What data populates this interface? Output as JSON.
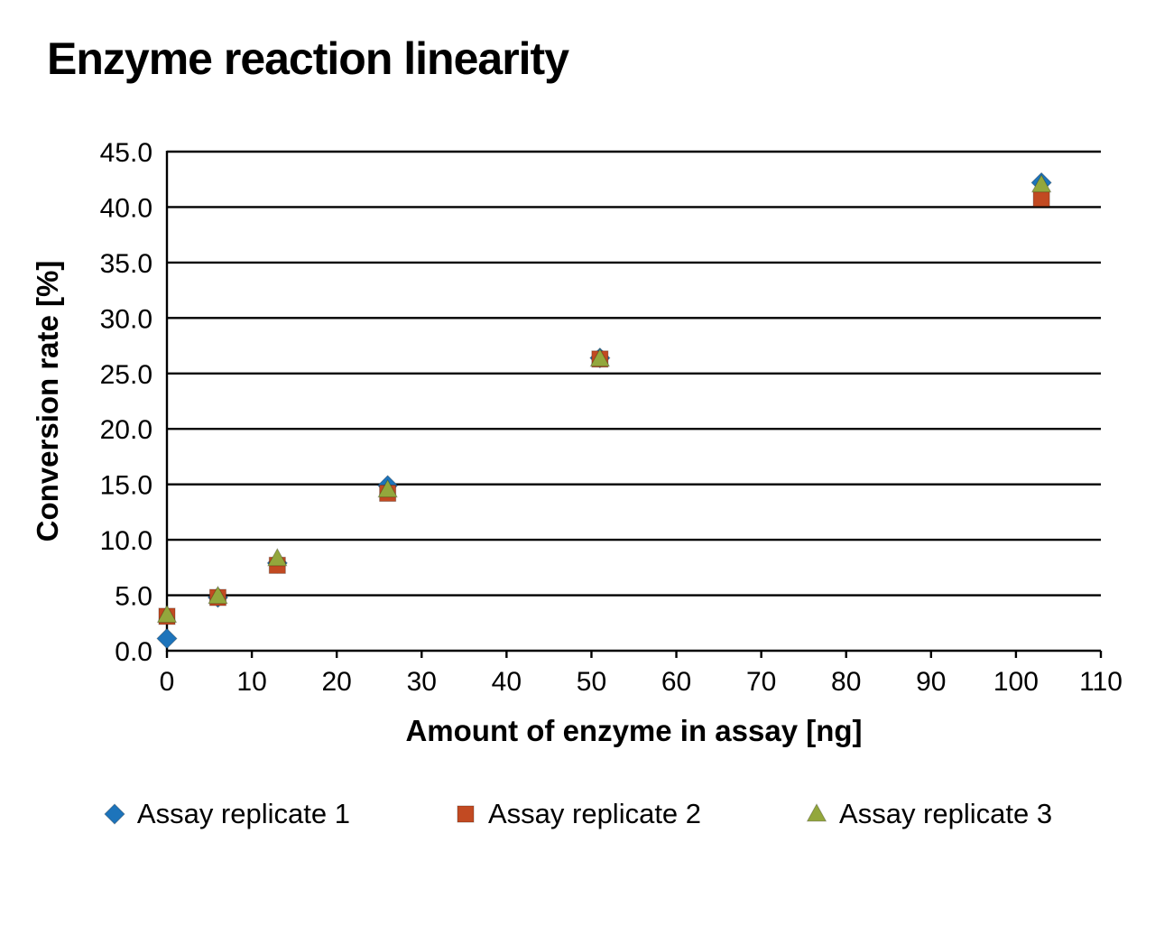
{
  "chart_data": {
    "type": "scatter",
    "title": "Enzyme reaction linearity",
    "xlabel": "Amount of enzyme in assay [ng]",
    "ylabel": "Conversion rate [%]",
    "xlim": [
      0,
      110
    ],
    "xtick_step": 10,
    "ylim": [
      0,
      45
    ],
    "ytick_step": 5,
    "ytick_decimals": 1,
    "grid": "horizontal",
    "legend_position": "bottom",
    "series": [
      {
        "name": "Assay replicate 1",
        "marker": "diamond",
        "color": "#1d74bb",
        "points": [
          [
            0,
            1.1
          ],
          [
            6,
            4.8
          ],
          [
            13,
            7.9
          ],
          [
            26,
            14.9
          ],
          [
            51,
            26.4
          ],
          [
            103,
            42.2
          ]
        ]
      },
      {
        "name": "Assay replicate 2",
        "marker": "square",
        "color": "#c24a22",
        "points": [
          [
            0,
            3.1
          ],
          [
            6,
            4.8
          ],
          [
            13,
            7.7
          ],
          [
            26,
            14.2
          ],
          [
            51,
            26.3
          ],
          [
            103,
            40.8
          ]
        ]
      },
      {
        "name": "Assay replicate 3",
        "marker": "triangle",
        "color": "#93a73c",
        "points": [
          [
            0,
            3.2
          ],
          [
            6,
            4.9
          ],
          [
            13,
            8.3
          ],
          [
            26,
            14.5
          ],
          [
            51,
            26.3
          ],
          [
            103,
            42.0
          ]
        ]
      }
    ]
  }
}
